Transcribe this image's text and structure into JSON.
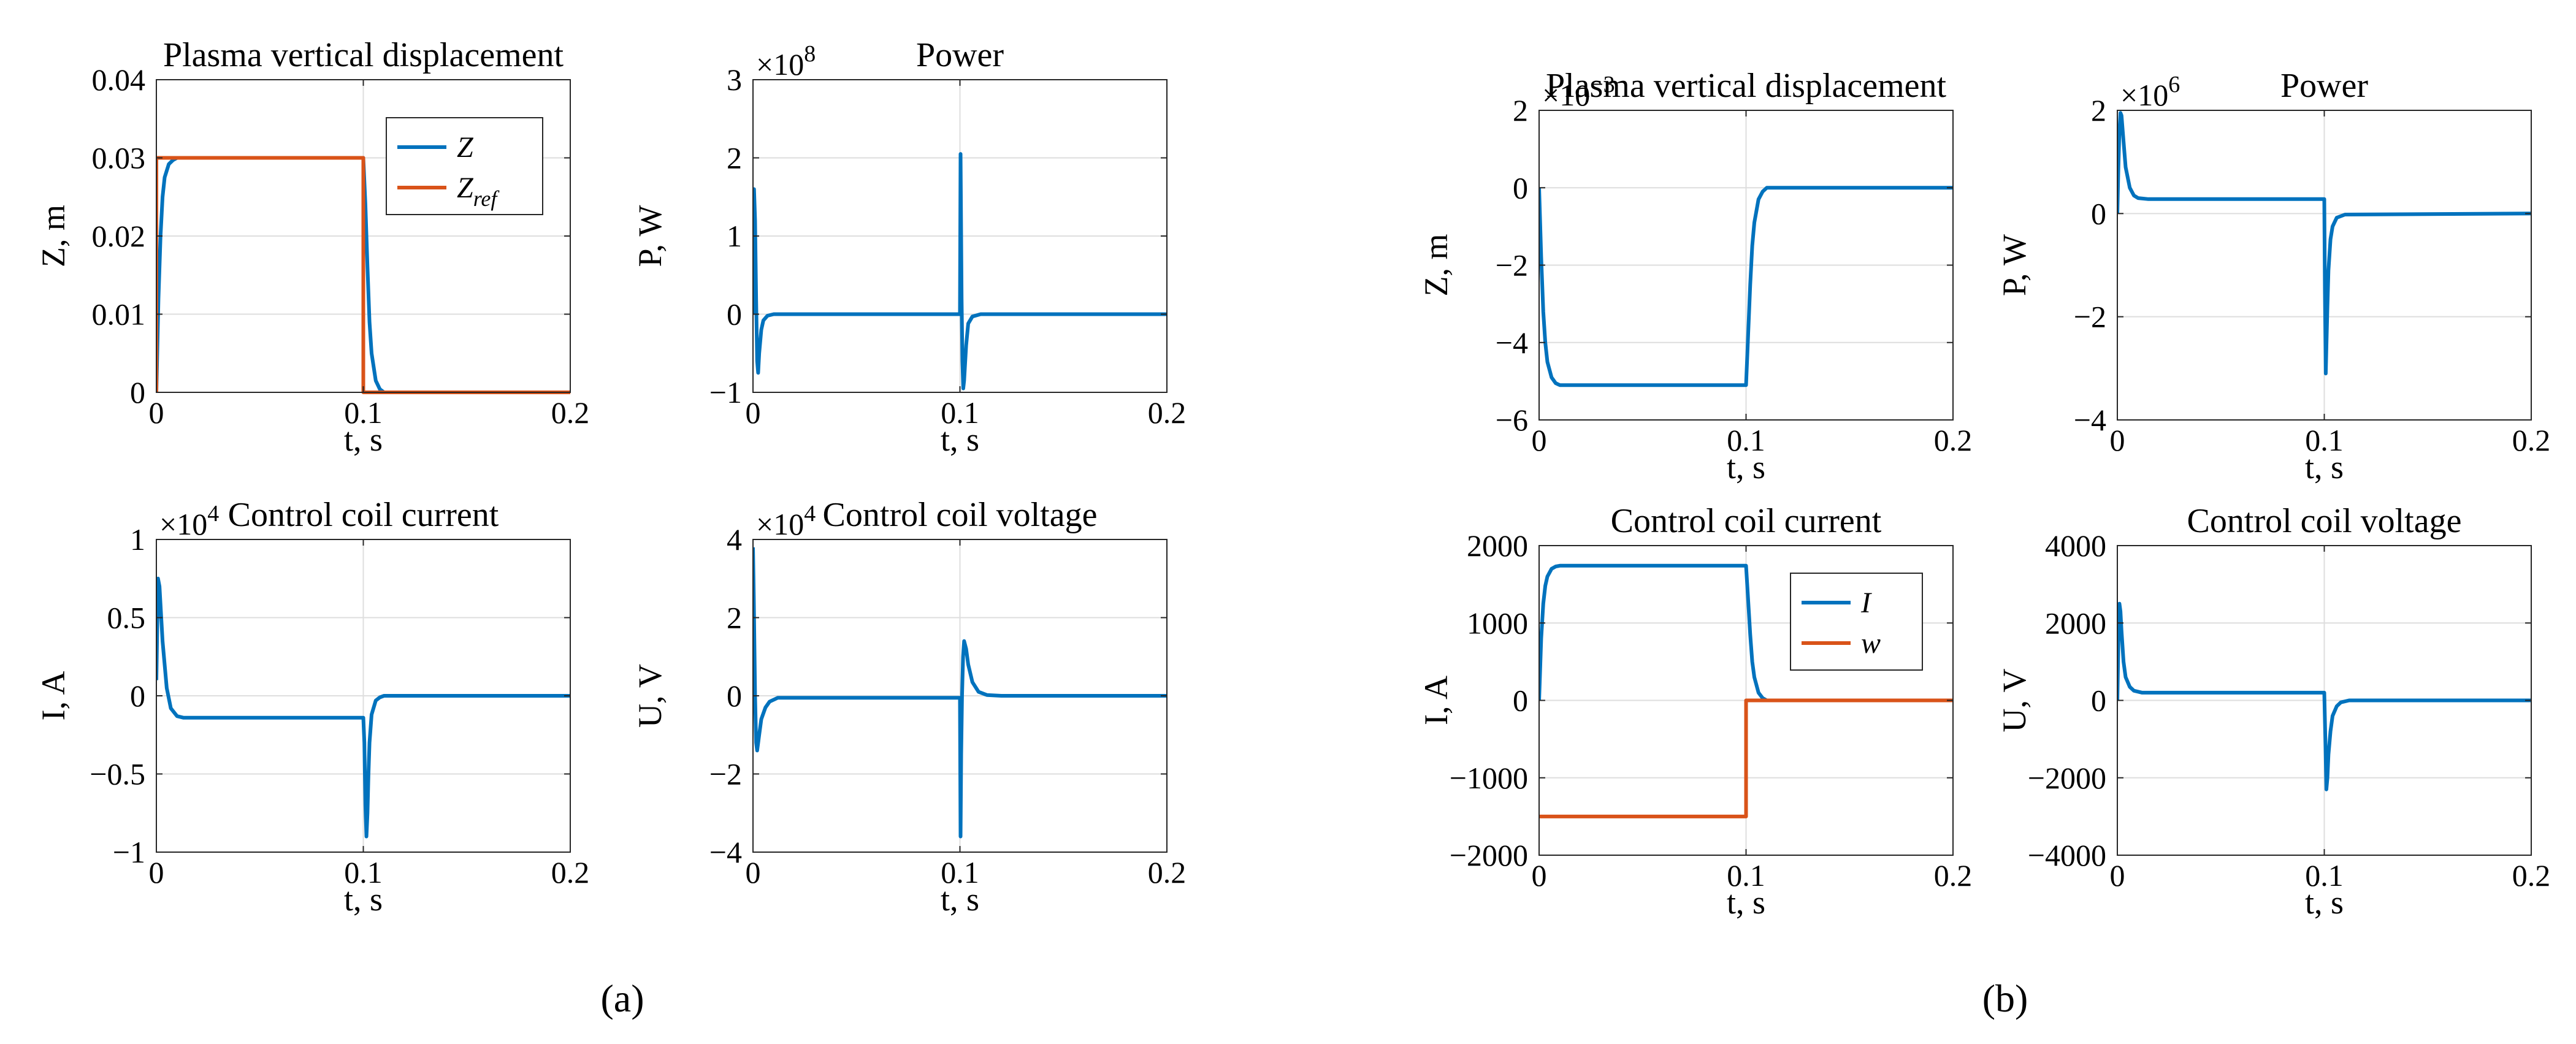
{
  "colors": {
    "blue": "#0072BD",
    "orange": "#D95319",
    "grid": "#dedede",
    "axis": "#262626"
  },
  "panel_labels": [
    "(a)",
    "(b)"
  ],
  "chart_data": [
    {
      "id": "a1",
      "type": "line",
      "title": "Plasma vertical displacement",
      "xlabel": "t, s",
      "ylabel": "Z, m",
      "exponent": "",
      "xlim": [
        0,
        0.2
      ],
      "ylim": [
        0,
        0.04
      ],
      "xticks": [
        "0",
        "0.1",
        "0.2"
      ],
      "yticks": [
        "0",
        "0.01",
        "0.02",
        "0.03",
        "0.04"
      ],
      "legend": [
        {
          "label": "Z"
        },
        {
          "label": "Z",
          "sub": "ref"
        }
      ],
      "series": [
        {
          "name": "Z",
          "color": "blue",
          "x": [
            0,
            0.001,
            0.002,
            0.003,
            0.004,
            0.006,
            0.008,
            0.01,
            0.015,
            0.1,
            0.101,
            0.102,
            0.103,
            0.104,
            0.106,
            0.108,
            0.11,
            0.2
          ],
          "y": [
            0,
            0.012,
            0.02,
            0.025,
            0.0275,
            0.0292,
            0.0297,
            0.03,
            0.03,
            0.03,
            0.024,
            0.016,
            0.009,
            0.005,
            0.0015,
            0.0004,
            0,
            0
          ]
        },
        {
          "name": "Z_ref",
          "color": "orange",
          "x": [
            0,
            0,
            0.1,
            0.1,
            0.2
          ],
          "y": [
            0,
            0.03,
            0.03,
            0,
            0
          ]
        }
      ]
    },
    {
      "id": "a2",
      "type": "line",
      "title": "Power",
      "xlabel": "t, s",
      "ylabel": "P, W",
      "exponent": "8",
      "xlim": [
        0,
        0.2
      ],
      "ylim": [
        -1,
        3
      ],
      "xticks": [
        "0",
        "0.1",
        "0.2"
      ],
      "yticks": [
        "-1",
        "0",
        "1",
        "2",
        "3"
      ],
      "series": [
        {
          "name": "P",
          "color": "blue",
          "x": [
            0,
            0.0005,
            0.001,
            0.0015,
            0.002,
            0.0025,
            0.003,
            0.004,
            0.005,
            0.007,
            0.01,
            0.1,
            0.1003,
            0.1008,
            0.1012,
            0.1016,
            0.102,
            0.103,
            0.104,
            0.106,
            0.11,
            0.2
          ],
          "y": [
            0,
            1.6,
            1.2,
            0.2,
            -0.6,
            -0.75,
            -0.5,
            -0.2,
            -0.08,
            -0.02,
            0,
            0,
            2.05,
            0.2,
            -0.6,
            -0.95,
            -0.85,
            -0.4,
            -0.12,
            -0.03,
            0,
            0
          ]
        }
      ]
    },
    {
      "id": "a3",
      "type": "line",
      "title": "Control coil current",
      "xlabel": "t, s",
      "ylabel": "I, A",
      "exponent": "4",
      "xlim": [
        0,
        0.2
      ],
      "ylim": [
        -1,
        1
      ],
      "xticks": [
        "0",
        "0.1",
        "0.2"
      ],
      "yticks": [
        "-1",
        "-0.5",
        "0",
        "0.5",
        "1"
      ],
      "series": [
        {
          "name": "I",
          "color": "blue",
          "x": [
            0,
            0.0008,
            0.0015,
            0.003,
            0.005,
            0.007,
            0.01,
            0.013,
            0.02,
            0.1,
            0.1005,
            0.101,
            0.1015,
            0.102,
            0.1025,
            0.103,
            0.104,
            0.106,
            0.108,
            0.11,
            0.2
          ],
          "y": [
            0.1,
            0.75,
            0.7,
            0.35,
            0.05,
            -0.08,
            -0.13,
            -0.14,
            -0.14,
            -0.14,
            -0.3,
            -0.7,
            -0.9,
            -0.75,
            -0.5,
            -0.3,
            -0.12,
            -0.03,
            -0.01,
            0,
            0
          ]
        }
      ]
    },
    {
      "id": "a4",
      "type": "line",
      "title": "Control coil voltage",
      "xlabel": "t, s",
      "ylabel": "U, V",
      "exponent": "4",
      "xlim": [
        0,
        0.2
      ],
      "ylim": [
        -4,
        4
      ],
      "xticks": [
        "0",
        "0.1",
        "0.2"
      ],
      "yticks": [
        "-4",
        "-2",
        "0",
        "2",
        "4"
      ],
      "series": [
        {
          "name": "U",
          "color": "blue",
          "x": [
            0,
            0.0004,
            0.001,
            0.0015,
            0.002,
            0.003,
            0.004,
            0.006,
            0.008,
            0.012,
            0.02,
            0.1,
            0.1003,
            0.1006,
            0.101,
            0.1015,
            0.102,
            0.103,
            0.104,
            0.106,
            0.109,
            0.113,
            0.12,
            0.2
          ],
          "y": [
            3.8,
            2.5,
            0,
            -1.2,
            -1.4,
            -1.0,
            -0.6,
            -0.3,
            -0.15,
            -0.05,
            -0.05,
            -0.05,
            -3.6,
            -1.5,
            0,
            1.0,
            1.4,
            1.2,
            0.8,
            0.35,
            0.1,
            0.02,
            0,
            0
          ]
        }
      ]
    },
    {
      "id": "b1",
      "type": "line",
      "title": "Plasma vertical displacement",
      "xlabel": "t, s",
      "ylabel": "Z, m",
      "exponent": "-3",
      "xlim": [
        0,
        0.2
      ],
      "ylim": [
        -6,
        2
      ],
      "xticks": [
        "0",
        "0.1",
        "0.2"
      ],
      "yticks": [
        "-6",
        "-4",
        "-2",
        "0",
        "2"
      ],
      "series": [
        {
          "name": "Z",
          "color": "blue",
          "x": [
            0,
            0.001,
            0.002,
            0.003,
            0.004,
            0.006,
            0.008,
            0.01,
            0.015,
            0.1,
            0.101,
            0.102,
            0.103,
            0.104,
            0.106,
            0.108,
            0.11,
            0.2
          ],
          "y": [
            0,
            -1.8,
            -3.2,
            -4.0,
            -4.5,
            -4.9,
            -5.05,
            -5.1,
            -5.1,
            -5.1,
            -3.8,
            -2.5,
            -1.5,
            -0.9,
            -0.3,
            -0.1,
            0,
            0
          ]
        }
      ]
    },
    {
      "id": "b2",
      "type": "line",
      "title": "Power",
      "xlabel": "t, s",
      "ylabel": "P, W",
      "exponent": "6",
      "xlim": [
        0,
        0.2
      ],
      "ylim": [
        -4,
        2
      ],
      "xticks": [
        "0",
        "0.1",
        "0.2"
      ],
      "yticks": [
        "-4",
        "-2",
        "0",
        "2"
      ],
      "series": [
        {
          "name": "P",
          "color": "blue",
          "x": [
            0,
            0.0005,
            0.001,
            0.0015,
            0.002,
            0.003,
            0.004,
            0.006,
            0.008,
            0.01,
            0.015,
            0.1,
            0.1003,
            0.1007,
            0.101,
            0.1015,
            0.102,
            0.103,
            0.104,
            0.106,
            0.11,
            0.2
          ],
          "y": [
            0,
            0.9,
            1.6,
            1.95,
            1.9,
            1.4,
            0.9,
            0.5,
            0.35,
            0.3,
            0.28,
            0.28,
            -1.5,
            -3.1,
            -2.6,
            -1.8,
            -1.1,
            -0.5,
            -0.25,
            -0.08,
            -0.02,
            0
          ]
        }
      ]
    },
    {
      "id": "b3",
      "type": "line",
      "title": "Control coil current",
      "xlabel": "t, s",
      "ylabel": "I, A",
      "exponent": "",
      "xlim": [
        0,
        0.2
      ],
      "ylim": [
        -2000,
        2000
      ],
      "xticks": [
        "0",
        "0.1",
        "0.2"
      ],
      "yticks": [
        "-2000",
        "-1000",
        "0",
        "1000",
        "2000"
      ],
      "legend": [
        {
          "label": "I"
        },
        {
          "label": "w"
        }
      ],
      "series": [
        {
          "name": "I",
          "color": "blue",
          "x": [
            0,
            0.001,
            0.002,
            0.003,
            0.004,
            0.006,
            0.008,
            0.01,
            0.015,
            0.1,
            0.101,
            0.102,
            0.103,
            0.104,
            0.106,
            0.108,
            0.11,
            0.2
          ],
          "y": [
            0,
            800,
            1250,
            1480,
            1600,
            1700,
            1730,
            1740,
            1740,
            1740,
            1300,
            850,
            500,
            300,
            100,
            30,
            0,
            0
          ]
        },
        {
          "name": "w",
          "color": "orange",
          "x": [
            0,
            0.1,
            0.1,
            0.2
          ],
          "y": [
            -1500,
            -1500,
            0,
            0
          ]
        }
      ]
    },
    {
      "id": "b4",
      "type": "line",
      "title": "Control coil voltage",
      "xlabel": "t, s",
      "ylabel": "U, V",
      "exponent": "",
      "xlim": [
        0,
        0.2
      ],
      "ylim": [
        -4000,
        4000
      ],
      "xticks": [
        "0",
        "0.1",
        "0.2"
      ],
      "yticks": [
        "-4000",
        "-2000",
        "0",
        "2000",
        "4000"
      ],
      "series": [
        {
          "name": "U",
          "color": "blue",
          "x": [
            0,
            0.0005,
            0.001,
            0.0015,
            0.002,
            0.003,
            0.004,
            0.006,
            0.008,
            0.012,
            0.02,
            0.1,
            0.1005,
            0.101,
            0.1015,
            0.102,
            0.103,
            0.104,
            0.106,
            0.108,
            0.112,
            0.2
          ],
          "y": [
            0,
            1500,
            2500,
            2300,
            1800,
            1000,
            600,
            350,
            250,
            200,
            200,
            200,
            -1000,
            -2300,
            -2000,
            -1400,
            -800,
            -400,
            -150,
            -50,
            0,
            0
          ]
        }
      ]
    }
  ]
}
